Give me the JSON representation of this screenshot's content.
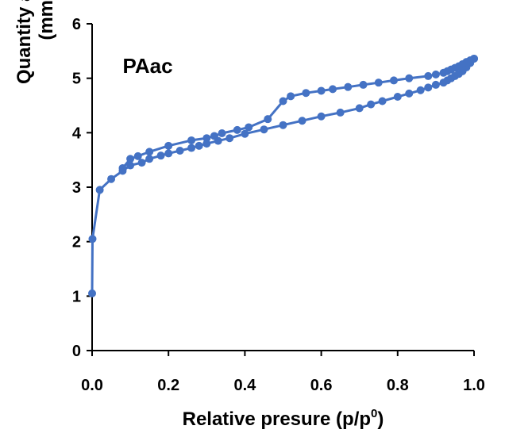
{
  "chart_data": {
    "type": "line",
    "xlabel": "Relative presure (p/p",
    "xlabel_sup": "0",
    "xlabel_close": ")",
    "ylabel_line1": "Quantity adsorbed",
    "ylabel_line2": "(mmol/g)",
    "xlim": [
      0,
      1.0
    ],
    "ylim": [
      0,
      6
    ],
    "x_ticks": [
      "0.0",
      "0.2",
      "0.4",
      "0.6",
      "0.8",
      "1.0"
    ],
    "y_ticks": [
      "0",
      "1",
      "2",
      "3",
      "4",
      "5",
      "6"
    ],
    "annotations": [
      {
        "text": "PAac",
        "x": 0.08,
        "y": 5.1
      }
    ],
    "grid": false,
    "color": "#4472C4",
    "series": [
      {
        "role": "adsorption",
        "x": [
          0.0,
          0.001,
          0.02,
          0.05,
          0.08,
          0.1,
          0.13,
          0.15,
          0.18,
          0.2,
          0.23,
          0.26,
          0.28,
          0.3,
          0.33,
          0.36,
          0.4,
          0.45,
          0.5,
          0.55,
          0.6,
          0.65,
          0.7,
          0.73,
          0.76,
          0.8,
          0.83,
          0.86,
          0.88,
          0.9,
          0.92,
          0.93,
          0.94,
          0.95,
          0.96,
          0.97,
          0.98,
          0.99,
          1.0
        ],
        "y": [
          1.05,
          2.05,
          2.95,
          3.15,
          3.3,
          3.4,
          3.45,
          3.52,
          3.58,
          3.62,
          3.67,
          3.72,
          3.76,
          3.8,
          3.85,
          3.9,
          3.98,
          4.06,
          4.14,
          4.22,
          4.3,
          4.37,
          4.45,
          4.52,
          4.58,
          4.66,
          4.72,
          4.78,
          4.83,
          4.88,
          4.92,
          4.96,
          5.0,
          5.04,
          5.08,
          5.13,
          5.2,
          5.28,
          5.36
        ]
      },
      {
        "role": "desorption",
        "x": [
          1.0,
          0.99,
          0.98,
          0.97,
          0.96,
          0.95,
          0.94,
          0.93,
          0.92,
          0.9,
          0.88,
          0.83,
          0.79,
          0.75,
          0.71,
          0.67,
          0.63,
          0.6,
          0.56,
          0.52,
          0.5,
          0.46,
          0.41,
          0.38,
          0.34,
          0.32,
          0.3,
          0.26,
          0.2,
          0.15,
          0.12,
          0.1,
          0.08
        ],
        "y": [
          5.36,
          5.33,
          5.3,
          5.26,
          5.22,
          5.19,
          5.16,
          5.13,
          5.1,
          5.07,
          5.04,
          5.0,
          4.96,
          4.92,
          4.88,
          4.84,
          4.8,
          4.77,
          4.73,
          4.67,
          4.58,
          4.25,
          4.1,
          4.05,
          3.99,
          3.94,
          3.9,
          3.86,
          3.76,
          3.65,
          3.57,
          3.52,
          3.35
        ]
      }
    ]
  }
}
